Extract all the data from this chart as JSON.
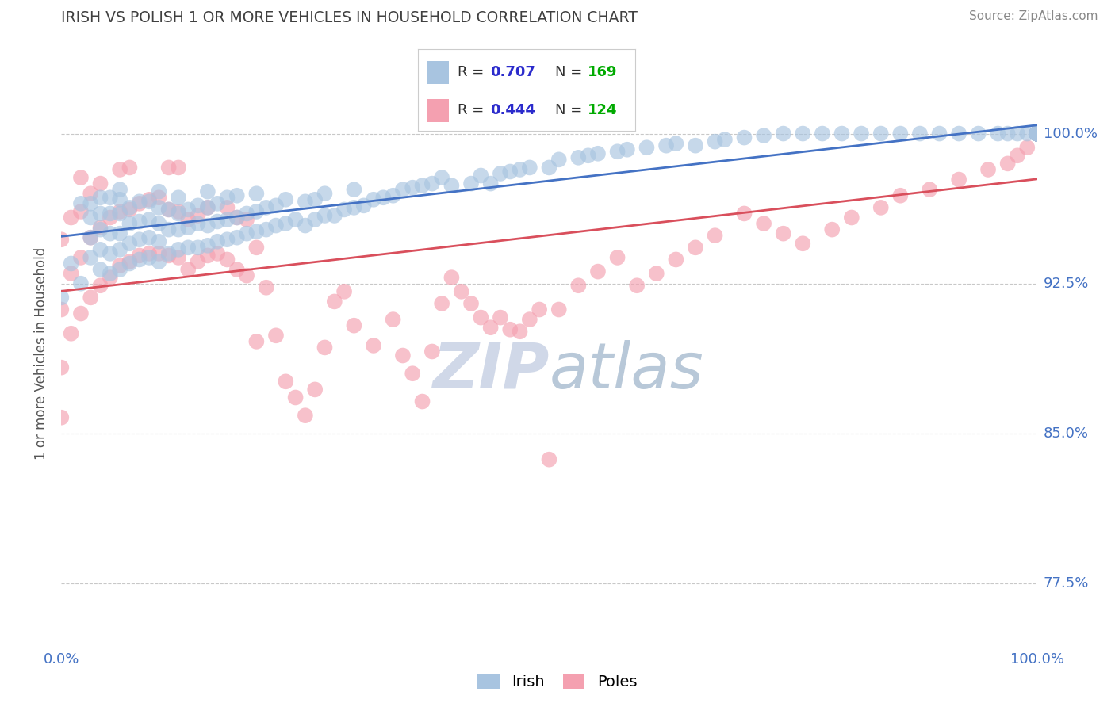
{
  "title": "IRISH VS POLISH 1 OR MORE VEHICLES IN HOUSEHOLD CORRELATION CHART",
  "source": "Source: ZipAtlas.com",
  "ylabel": "1 or more Vehicles in Household",
  "irish_color": "#a8c4e0",
  "poles_color": "#f4a0b0",
  "irish_line_color": "#4472c4",
  "poles_line_color": "#d94f5c",
  "title_color": "#404040",
  "source_color": "#888888",
  "axis_label_color": "#4472c4",
  "legend_r_color": "#2b2bcc",
  "legend_n_color": "#00aa00",
  "watermark_color": "#cdd8e8",
  "grid_color": "#c8c8c8",
  "yticks": [
    0.775,
    0.85,
    0.925,
    1.0
  ],
  "ytick_labels": [
    "77.5%",
    "85.0%",
    "92.5%",
    "100.0%"
  ],
  "ylim": [
    0.745,
    1.035
  ],
  "xlim": [
    0.0,
    1.0
  ],
  "irish_scatter_x": [
    0.0,
    0.01,
    0.02,
    0.02,
    0.03,
    0.03,
    0.03,
    0.03,
    0.04,
    0.04,
    0.04,
    0.04,
    0.04,
    0.05,
    0.05,
    0.05,
    0.05,
    0.05,
    0.06,
    0.06,
    0.06,
    0.06,
    0.06,
    0.06,
    0.07,
    0.07,
    0.07,
    0.07,
    0.08,
    0.08,
    0.08,
    0.08,
    0.09,
    0.09,
    0.09,
    0.09,
    0.1,
    0.1,
    0.1,
    0.1,
    0.1,
    0.11,
    0.11,
    0.11,
    0.12,
    0.12,
    0.12,
    0.12,
    0.13,
    0.13,
    0.13,
    0.14,
    0.14,
    0.14,
    0.15,
    0.15,
    0.15,
    0.15,
    0.16,
    0.16,
    0.16,
    0.17,
    0.17,
    0.17,
    0.18,
    0.18,
    0.18,
    0.19,
    0.19,
    0.2,
    0.2,
    0.2,
    0.21,
    0.21,
    0.22,
    0.22,
    0.23,
    0.23,
    0.24,
    0.25,
    0.25,
    0.26,
    0.26,
    0.27,
    0.27,
    0.28,
    0.29,
    0.3,
    0.3,
    0.31,
    0.32,
    0.33,
    0.34,
    0.35,
    0.36,
    0.37,
    0.38,
    0.39,
    0.4,
    0.42,
    0.43,
    0.44,
    0.45,
    0.46,
    0.47,
    0.48,
    0.5,
    0.51,
    0.53,
    0.54,
    0.55,
    0.57,
    0.58,
    0.6,
    0.62,
    0.63,
    0.65,
    0.67,
    0.68,
    0.7,
    0.72,
    0.74,
    0.76,
    0.78,
    0.8,
    0.82,
    0.84,
    0.86,
    0.88,
    0.9,
    0.92,
    0.94,
    0.96,
    0.97,
    0.98,
    0.99,
    1.0,
    1.0,
    1.0,
    1.0,
    1.0,
    1.0,
    1.0,
    1.0,
    1.0,
    1.0,
    1.0,
    1.0,
    1.0,
    1.0,
    1.0,
    1.0,
    1.0,
    1.0,
    1.0,
    1.0,
    1.0,
    1.0,
    1.0,
    1.0,
    1.0,
    1.0,
    1.0,
    1.0,
    1.0,
    1.0,
    1.0,
    1.0,
    1.0
  ],
  "irish_scatter_y": [
    0.918,
    0.935,
    0.925,
    0.965,
    0.938,
    0.948,
    0.958,
    0.965,
    0.932,
    0.942,
    0.952,
    0.96,
    0.968,
    0.93,
    0.94,
    0.95,
    0.96,
    0.968,
    0.932,
    0.942,
    0.95,
    0.96,
    0.967,
    0.972,
    0.935,
    0.945,
    0.955,
    0.963,
    0.937,
    0.947,
    0.956,
    0.966,
    0.938,
    0.948,
    0.957,
    0.966,
    0.936,
    0.946,
    0.955,
    0.963,
    0.971,
    0.94,
    0.952,
    0.962,
    0.942,
    0.952,
    0.96,
    0.968,
    0.943,
    0.953,
    0.962,
    0.943,
    0.955,
    0.964,
    0.944,
    0.954,
    0.963,
    0.971,
    0.946,
    0.956,
    0.965,
    0.947,
    0.957,
    0.968,
    0.948,
    0.958,
    0.969,
    0.95,
    0.96,
    0.951,
    0.961,
    0.97,
    0.952,
    0.963,
    0.954,
    0.964,
    0.955,
    0.967,
    0.957,
    0.954,
    0.966,
    0.957,
    0.967,
    0.959,
    0.97,
    0.959,
    0.962,
    0.963,
    0.972,
    0.964,
    0.967,
    0.968,
    0.969,
    0.972,
    0.973,
    0.974,
    0.975,
    0.978,
    0.974,
    0.975,
    0.979,
    0.975,
    0.98,
    0.981,
    0.982,
    0.983,
    0.983,
    0.987,
    0.988,
    0.989,
    0.99,
    0.991,
    0.992,
    0.993,
    0.994,
    0.995,
    0.994,
    0.996,
    0.997,
    0.998,
    0.999,
    1.0,
    1.0,
    1.0,
    1.0,
    1.0,
    1.0,
    1.0,
    1.0,
    1.0,
    1.0,
    1.0,
    1.0,
    1.0,
    1.0,
    1.0,
    1.0,
    1.0,
    1.0,
    1.0,
    1.0,
    1.0,
    1.0,
    1.0,
    1.0,
    1.0,
    1.0,
    1.0,
    1.0,
    1.0,
    1.0,
    1.0,
    1.0,
    1.0,
    1.0,
    1.0,
    1.0,
    1.0,
    1.0,
    1.0,
    1.0,
    1.0,
    1.0,
    1.0,
    1.0,
    1.0,
    1.0,
    1.0,
    1.0
  ],
  "poles_scatter_x": [
    0.0,
    0.0,
    0.0,
    0.0,
    0.01,
    0.01,
    0.01,
    0.02,
    0.02,
    0.02,
    0.02,
    0.03,
    0.03,
    0.03,
    0.04,
    0.04,
    0.04,
    0.05,
    0.05,
    0.06,
    0.06,
    0.06,
    0.07,
    0.07,
    0.07,
    0.08,
    0.08,
    0.09,
    0.09,
    0.1,
    0.1,
    0.11,
    0.11,
    0.11,
    0.12,
    0.12,
    0.12,
    0.13,
    0.13,
    0.14,
    0.14,
    0.15,
    0.15,
    0.16,
    0.17,
    0.17,
    0.18,
    0.18,
    0.19,
    0.19,
    0.2,
    0.2,
    0.21,
    0.22,
    0.23,
    0.24,
    0.25,
    0.26,
    0.27,
    0.28,
    0.29,
    0.3,
    0.32,
    0.34,
    0.35,
    0.36,
    0.37,
    0.38,
    0.39,
    0.4,
    0.41,
    0.42,
    0.43,
    0.44,
    0.45,
    0.46,
    0.47,
    0.48,
    0.49,
    0.5,
    0.51,
    0.53,
    0.55,
    0.57,
    0.59,
    0.61,
    0.63,
    0.65,
    0.67,
    0.7,
    0.72,
    0.74,
    0.76,
    0.79,
    0.81,
    0.84,
    0.86,
    0.89,
    0.92,
    0.95,
    0.97,
    0.98,
    0.99,
    1.0,
    1.0,
    1.0,
    1.0,
    1.0,
    1.0,
    1.0,
    1.0,
    1.0,
    1.0,
    1.0,
    1.0,
    1.0,
    1.0,
    1.0,
    1.0,
    1.0,
    1.0,
    1.0,
    1.0,
    1.0
  ],
  "poles_scatter_y": [
    0.858,
    0.883,
    0.912,
    0.947,
    0.9,
    0.93,
    0.958,
    0.91,
    0.938,
    0.961,
    0.978,
    0.918,
    0.948,
    0.97,
    0.924,
    0.953,
    0.975,
    0.928,
    0.958,
    0.934,
    0.961,
    0.982,
    0.936,
    0.962,
    0.983,
    0.939,
    0.965,
    0.94,
    0.967,
    0.94,
    0.968,
    0.939,
    0.962,
    0.983,
    0.938,
    0.961,
    0.983,
    0.932,
    0.957,
    0.936,
    0.959,
    0.939,
    0.963,
    0.94,
    0.937,
    0.963,
    0.932,
    0.958,
    0.929,
    0.957,
    0.896,
    0.943,
    0.923,
    0.899,
    0.876,
    0.868,
    0.859,
    0.872,
    0.893,
    0.916,
    0.921,
    0.904,
    0.894,
    0.907,
    0.889,
    0.88,
    0.866,
    0.891,
    0.915,
    0.928,
    0.921,
    0.915,
    0.908,
    0.903,
    0.908,
    0.902,
    0.901,
    0.907,
    0.912,
    0.837,
    0.912,
    0.924,
    0.931,
    0.938,
    0.924,
    0.93,
    0.937,
    0.943,
    0.949,
    0.96,
    0.955,
    0.95,
    0.945,
    0.952,
    0.958,
    0.963,
    0.969,
    0.972,
    0.977,
    0.982,
    0.985,
    0.989,
    0.993,
    1.0,
    1.0,
    1.0,
    1.0,
    1.0,
    1.0,
    1.0,
    1.0,
    1.0,
    1.0,
    1.0,
    1.0,
    1.0,
    1.0,
    1.0,
    1.0,
    1.0,
    1.0,
    1.0,
    1.0,
    1.0
  ]
}
